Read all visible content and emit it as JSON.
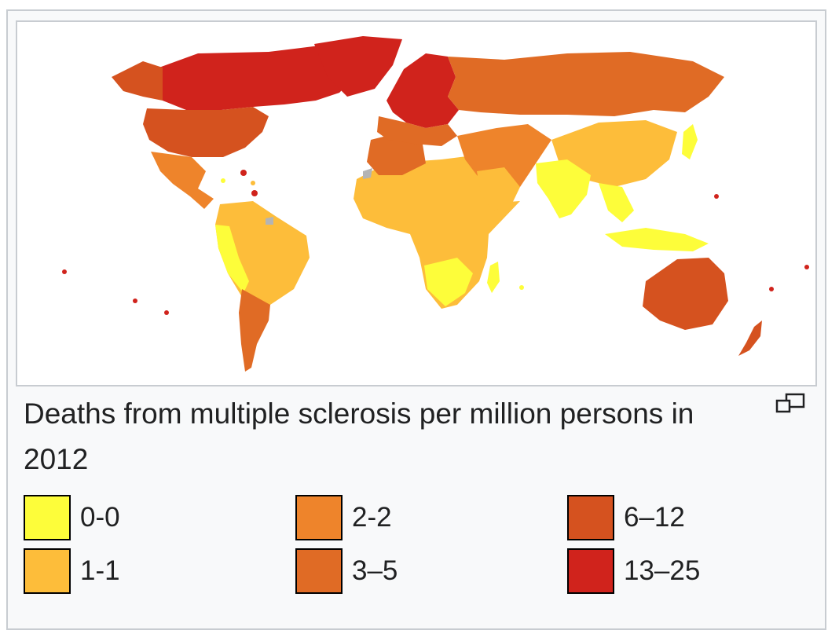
{
  "caption": "Deaths from multiple sclerosis per million persons in 2012",
  "magnify_icon": "magnify-clip-icon",
  "legend": [
    {
      "label": "0-0",
      "color": "#fdfd3a"
    },
    {
      "label": "1-1",
      "color": "#fdbd3a"
    },
    {
      "label": "2-2",
      "color": "#ee842b"
    },
    {
      "label": "3–5",
      "color": "#e06b25"
    },
    {
      "label": "6–12",
      "color": "#d5521f"
    },
    {
      "label": "13–25",
      "color": "#d0231c"
    }
  ],
  "colors": {
    "no_data": "#b4b4b4",
    "border": "#c8ccd1",
    "background": "#f8f9fa"
  }
}
